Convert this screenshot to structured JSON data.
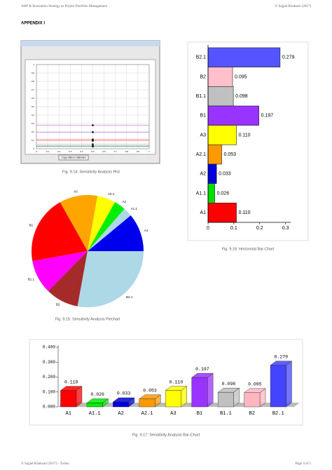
{
  "header": {
    "left": "AHP & Innovation Strategy as Project Portfolio Management",
    "right": "© Sajjad Khaksari (2017)"
  },
  "appendix": "APPENDIX I",
  "chart_data": [
    {
      "type": "line",
      "caption": "Fig. 9.14: Sensitivity Analysis Plot",
      "button": "Copy data to clipboard",
      "x": [
        0,
        0.5,
        1
      ],
      "series": [
        {
          "color": "#cc66cc",
          "values": [
            0.279,
            0.279,
            0.279
          ]
        },
        {
          "color": "#9966ff",
          "values": [
            0.197,
            0.197,
            0.197
          ]
        },
        {
          "color": "#ff6666",
          "values": [
            0.11,
            0.11,
            0.11
          ]
        },
        {
          "color": "#999999",
          "values": [
            0.098,
            0.098,
            0.098
          ]
        },
        {
          "color": "#ff99cc",
          "values": [
            0.095,
            0.095,
            0.095
          ]
        },
        {
          "color": "#ffaa33",
          "values": [
            0.053,
            0.053,
            0.053
          ]
        },
        {
          "color": "#3366ff",
          "values": [
            0.033,
            0.033,
            0.033
          ]
        },
        {
          "color": "#33cc33",
          "values": [
            0.026,
            0.026,
            0.026
          ]
        }
      ],
      "xlim": [
        0,
        1
      ],
      "xticks": [
        0,
        0.1,
        0.2,
        0.3,
        0.4,
        0.5,
        0.6,
        0.7,
        0.8,
        0.9,
        1
      ],
      "ylim": [
        0,
        1
      ],
      "yticks": [
        0,
        0.1,
        0.2,
        0.3,
        0.4,
        0.5,
        0.6,
        0.7,
        0.8,
        0.9,
        1
      ],
      "grid": true
    },
    {
      "type": "pie",
      "caption": "Fig. 9.15: Sensitivity Analysis Piechart",
      "categories": [
        "A1",
        "A1.1",
        "A2",
        "A2.1",
        "A3",
        "B1",
        "B1.1",
        "B2",
        "B2.1"
      ],
      "values": [
        0.11,
        0.026,
        0.033,
        0.053,
        0.11,
        0.197,
        0.098,
        0.095,
        0.279
      ],
      "colors": [
        "#0000ee",
        "#add8e6",
        "#00ee00",
        "#ffff00",
        "#ffa500",
        "#ff0000",
        "#ff00ff",
        "#a52a2a",
        "#add8e6"
      ]
    },
    {
      "type": "hbar",
      "caption": "Fig. 9.16: Horizontal Bar-Chart",
      "categories": [
        "B2.1",
        "B2",
        "B1.1",
        "B1",
        "A3",
        "A2.1",
        "A2",
        "A1.1",
        "A1"
      ],
      "values": [
        0.279,
        0.095,
        0.098,
        0.197,
        0.11,
        0.053,
        0.033,
        0.026,
        0.11
      ],
      "value_labels": [
        "0.279",
        "0.095",
        "0.098",
        "0.197",
        "0.110",
        "0.053",
        "0.033",
        "0.026",
        "0.110"
      ],
      "colors": [
        "#5555ff",
        "#ffc0cb",
        "#c0c0c0",
        "#9933ff",
        "#ffff00",
        "#ff9900",
        "#0000dd",
        "#00dd00",
        "#ff0000"
      ],
      "xlim": [
        0,
        0.32
      ],
      "xticks": [
        0,
        0.1,
        0.2,
        0.3
      ]
    },
    {
      "type": "bar3d",
      "caption": "Fig. 9.17: Sensitivity Analysis Bar-Chart",
      "categories": [
        "A1",
        "A1.1",
        "A2",
        "A2.1",
        "A3",
        "B1",
        "B1.1",
        "B2",
        "B2.1"
      ],
      "values": [
        0.11,
        0.026,
        0.033,
        0.053,
        0.11,
        0.197,
        0.098,
        0.095,
        0.279
      ],
      "value_labels": [
        "0.110",
        "0.026",
        "0.033",
        "0.053",
        "0.110",
        "0.197",
        "0.098",
        "0.095",
        "0.279"
      ],
      "colors": [
        "#ff0000",
        "#00ee00",
        "#0000dd",
        "#ff9900",
        "#ffff00",
        "#9933ff",
        "#c0c0c0",
        "#ffb6c1",
        "#4444ff"
      ],
      "ylim": [
        0,
        0.4
      ],
      "yticks": [
        {
          "value": 0,
          "label": "0.000"
        },
        {
          "value": 0.1,
          "label": "0.100"
        },
        {
          "value": 0.2,
          "label": "0.200"
        },
        {
          "value": 0.3,
          "label": "0.300"
        },
        {
          "value": 0.4,
          "label": "0.400"
        }
      ]
    }
  ],
  "footer": {
    "left": "© Sajjad Khaksari (2017) - Torino",
    "right": "Page 4 of 5"
  }
}
